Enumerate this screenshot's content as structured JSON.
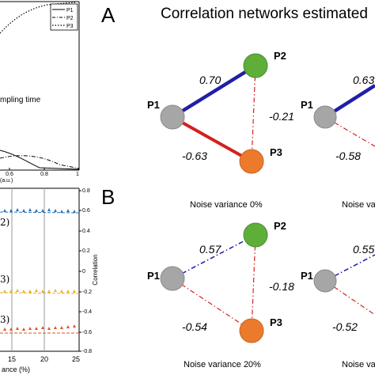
{
  "panel_a": {
    "letter": "A",
    "title": "Correlation networks estimated",
    "legend": [
      "P1",
      "P2",
      "P3"
    ],
    "annotation_fragment": "mpling time",
    "x_ticks": [
      "0.6",
      "0.8",
      "1"
    ],
    "x_label_fragment": "(a.u.)",
    "networks": [
      {
        "caption": "Noise variance 0%",
        "nodes": [
          "P1",
          "P2",
          "P3"
        ],
        "edge_labels": {
          "p1_p2": "0.70",
          "p2_p3": "-0.21",
          "p1_p3": "-0.63"
        }
      },
      {
        "caption_fragment": "Noise va",
        "nodes": [
          "P1"
        ],
        "edge_labels": {
          "p1_p2": "0.63",
          "p1_p3": "-0.58"
        }
      }
    ]
  },
  "panel_b": {
    "letter": "B",
    "y2_label": "Correlation",
    "y2_ticks": [
      "0.8",
      "0.6",
      "0.4",
      "0.2",
      "0",
      "-0.2",
      "-0.4",
      "-0.6",
      "-0.8"
    ],
    "x_ticks": [
      "15",
      "20",
      "25"
    ],
    "x_label_fragment": "ance (%)",
    "series_labels": [
      "2)",
      "3)",
      "3)"
    ],
    "networks": [
      {
        "caption": "Noise variance 20%",
        "nodes": [
          "P1",
          "P2",
          "P3"
        ],
        "edge_labels": {
          "p1_p2": "0.57",
          "p2_p3": "-0.18",
          "p1_p3": "-0.54"
        }
      },
      {
        "caption_fragment": "Noise va",
        "nodes": [
          "P1"
        ],
        "edge_labels": {
          "p1_p2": "0.55",
          "p1_p3": "-0.52"
        }
      }
    ]
  },
  "colors": {
    "positive_edge": "#1f1fa8",
    "negative_edge": "#d42020",
    "node_p1": "#a6a6a6",
    "node_p2": "#5fae3a",
    "node_p3": "#ec7a2c",
    "series_top": "#2a74b8",
    "series_mid": "#e8b22a",
    "series_bottom": "#d9562a"
  }
}
